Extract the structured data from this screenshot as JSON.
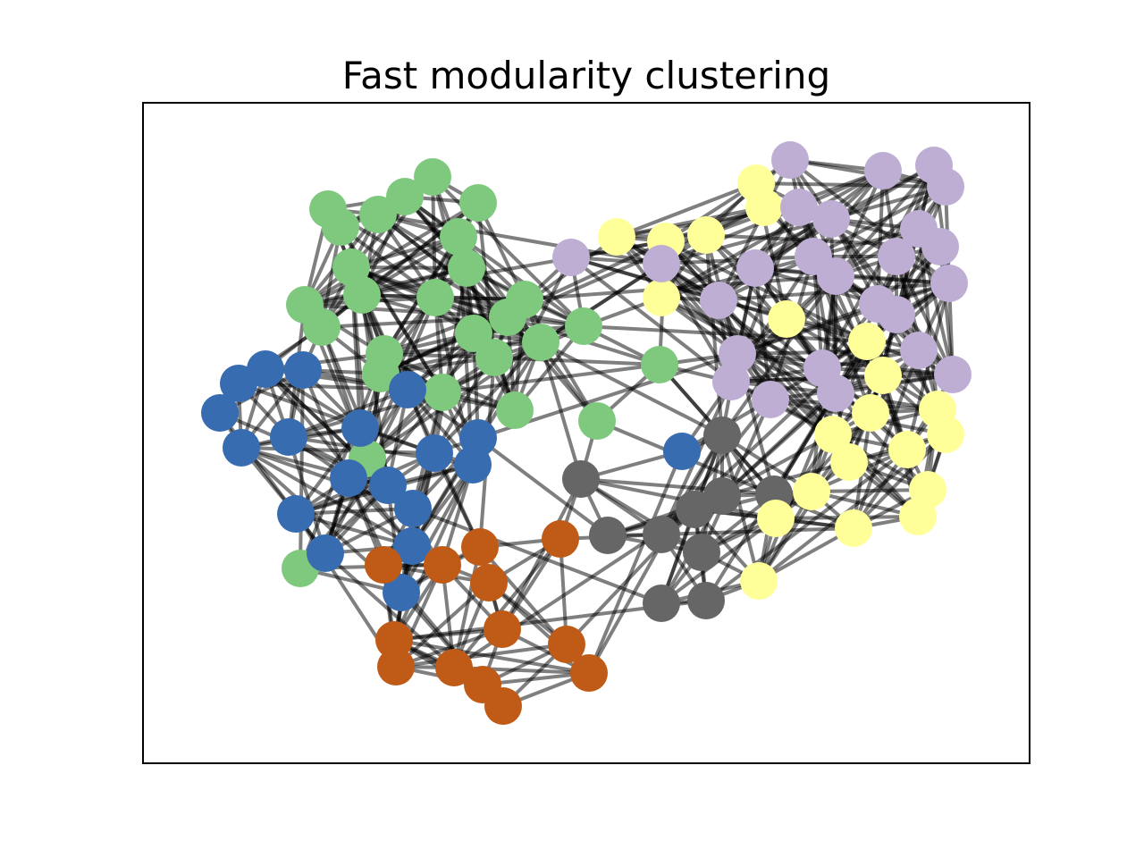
{
  "title": "Fast modularity clustering",
  "cluster_colors": {
    "green": "#7fc97f",
    "blue": "#386cb0",
    "orange": "#bf5b17",
    "gray": "#666666",
    "yellow": "#ffff99",
    "purple": "#beaed4"
  },
  "edge_color": "#000000"
}
